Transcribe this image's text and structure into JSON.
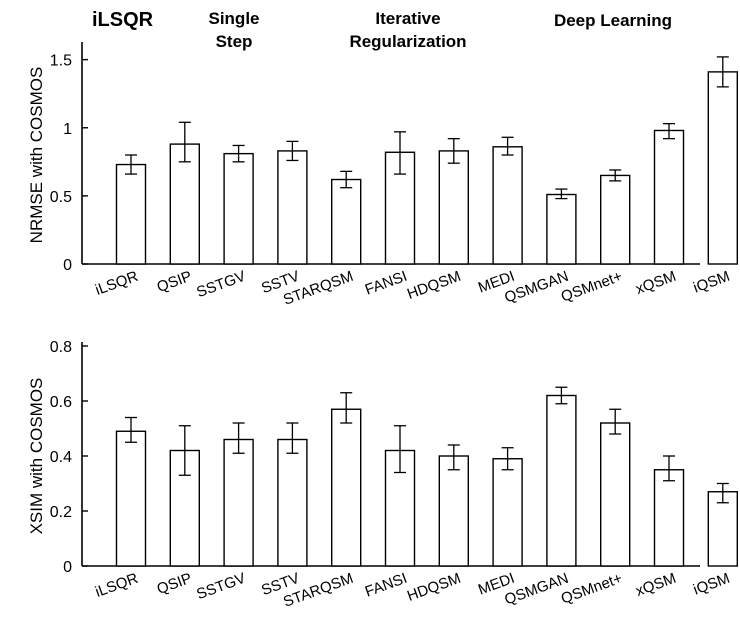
{
  "header": {
    "method_tag": "iLSQR",
    "groups": [
      {
        "lines": [
          "Single",
          "Step"
        ]
      },
      {
        "lines": [
          "Iterative",
          "Regularization"
        ]
      },
      {
        "lines": [
          "Deep Learning"
        ]
      }
    ]
  },
  "chart_data": [
    {
      "type": "bar",
      "title": "",
      "xlabel": "",
      "ylabel": "NRMSE with COSMOS",
      "ylim": [
        0,
        1.6
      ],
      "yticks": [
        0,
        0.5,
        1,
        1.5
      ],
      "ytick_labels": [
        "0",
        "0.5",
        "1",
        "1.5"
      ],
      "grid": false,
      "categories": [
        "iLSQR",
        "QSIP",
        "SSTGV",
        "SSTV",
        "STARQSM",
        "FANSI",
        "HDQSM",
        "MEDI",
        "QSMGAN",
        "QSMnet+",
        "xQSM",
        "iQSM"
      ],
      "values": [
        0.73,
        0.88,
        0.81,
        0.83,
        0.62,
        0.82,
        0.83,
        0.86,
        0.51,
        0.65,
        0.98,
        1.41
      ],
      "error_low": [
        0.66,
        0.75,
        0.75,
        0.76,
        0.56,
        0.66,
        0.74,
        0.8,
        0.48,
        0.61,
        0.92,
        1.3
      ],
      "error_high": [
        0.8,
        1.04,
        0.87,
        0.9,
        0.68,
        0.97,
        0.92,
        0.93,
        0.55,
        0.69,
        1.03,
        1.52
      ]
    },
    {
      "type": "bar",
      "title": "",
      "xlabel": "",
      "ylabel": "XSIM with COSMOS",
      "ylim": [
        0,
        0.8
      ],
      "yticks": [
        0,
        0.2,
        0.4,
        0.6,
        0.8
      ],
      "ytick_labels": [
        "0",
        "0.2",
        "0.4",
        "0.6",
        "0.8"
      ],
      "grid": false,
      "categories": [
        "iLSQR",
        "QSIP",
        "SSTGV",
        "SSTV",
        "STARQSM",
        "FANSI",
        "HDQSM",
        "MEDI",
        "QSMGAN",
        "QSMnet+",
        "xQSM",
        "iQSM"
      ],
      "values": [
        0.49,
        0.42,
        0.46,
        0.46,
        0.57,
        0.42,
        0.4,
        0.39,
        0.62,
        0.52,
        0.35,
        0.27
      ],
      "error_low": [
        0.45,
        0.33,
        0.41,
        0.41,
        0.52,
        0.34,
        0.35,
        0.35,
        0.59,
        0.48,
        0.31,
        0.23
      ],
      "error_high": [
        0.54,
        0.51,
        0.52,
        0.52,
        0.63,
        0.51,
        0.44,
        0.43,
        0.65,
        0.57,
        0.4,
        0.3
      ]
    }
  ]
}
